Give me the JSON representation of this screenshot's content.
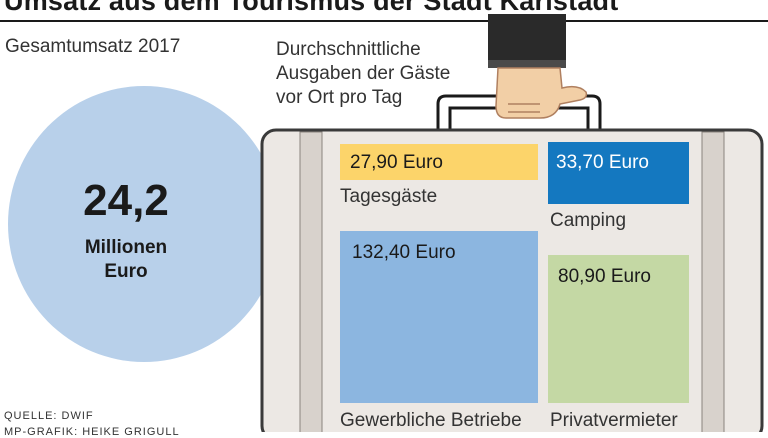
{
  "header": {
    "title": "Umsatz aus dem Tourismus der Stadt Karlstadt"
  },
  "total": {
    "label": "Gesamtumsatz 2017",
    "value": "24,2",
    "unit_line1": "Millionen",
    "unit_line2": "Euro"
  },
  "subtitle": {
    "line1": "Durchschnittliche",
    "line2": "Ausgaben der Gäste",
    "line3": "vor Ort pro Tag"
  },
  "footer": {
    "source": "QUELLE: DWIF",
    "credit": "MP-GRAFIK: HEIKE GRIGULL"
  },
  "chart_data": {
    "type": "bar",
    "title": "Umsatz aus dem Tourismus der Stadt Karlstadt",
    "total": {
      "label": "Gesamtumsatz 2017",
      "value": 24.2,
      "unit": "Millionen Euro"
    },
    "categories": [
      "Tagesgäste",
      "Camping",
      "Gewerbliche Betriebe",
      "Privatvermieter"
    ],
    "values": [
      27.9,
      33.7,
      132.4,
      80.9
    ],
    "value_labels": [
      "27,90 Euro",
      "33,70 Euro",
      "132,40 Euro",
      "80,90 Euro"
    ],
    "colors": [
      "#fcd46a",
      "#1478c0",
      "#8cb6e0",
      "#c4d8a4"
    ],
    "unit": "Euro"
  },
  "colors": {
    "circle": "#b8d0ea",
    "case_body": "#ece8e4",
    "case_border": "#3a3a3a",
    "case_strap": "#d8d2cc"
  }
}
